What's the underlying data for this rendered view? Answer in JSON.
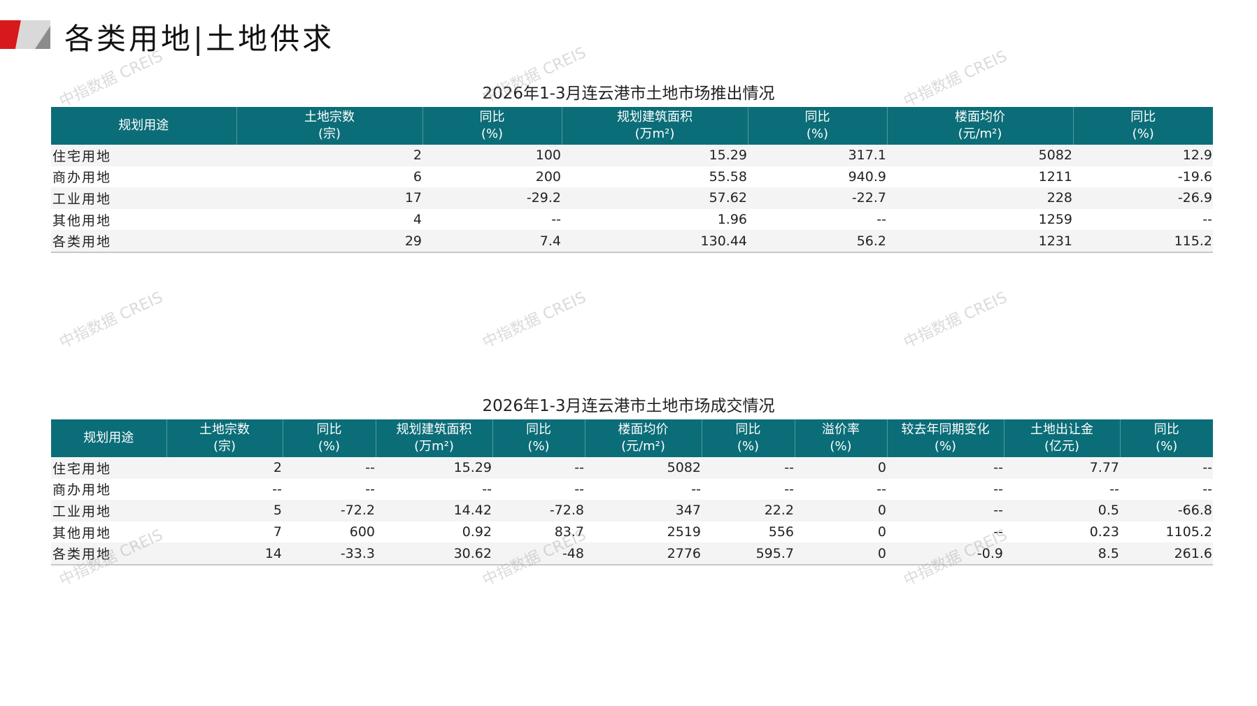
{
  "page": {
    "title": "各类用地|土地供求",
    "watermark": "中指数据 CREIS",
    "header_color": "#0b6d77",
    "logo_red": "#d7191c"
  },
  "supply": {
    "title": "2026年1-3月连云港市土地市场推出情况",
    "headers": [
      "规划用途",
      "土地宗数\n(宗)",
      "同比\n(%)",
      "规划建筑面积\n(万m²)",
      "同比\n(%)",
      "楼面均价\n(元/m²)",
      "同比\n(%)"
    ],
    "rows": [
      [
        "住宅用地",
        "2",
        "100",
        "15.29",
        "317.1",
        "5082",
        "12.9"
      ],
      [
        "商办用地",
        "6",
        "200",
        "55.58",
        "940.9",
        "1211",
        "-19.6"
      ],
      [
        "工业用地",
        "17",
        "-29.2",
        "57.62",
        "-22.7",
        "228",
        "-26.9"
      ],
      [
        "其他用地",
        "4",
        "--",
        "1.96",
        "--",
        "1259",
        "--"
      ],
      [
        "各类用地",
        "29",
        "7.4",
        "130.44",
        "56.2",
        "1231",
        "115.2"
      ]
    ]
  },
  "deal": {
    "title": "2026年1-3月连云港市土地市场成交情况",
    "headers": [
      "规划用途",
      "土地宗数\n(宗)",
      "同比\n(%)",
      "规划建筑面积\n(万m²)",
      "同比\n(%)",
      "楼面均价\n(元/m²)",
      "同比\n(%)",
      "溢价率\n(%)",
      "较去年同期变化\n(%)",
      "土地出让金\n(亿元)",
      "同比\n(%)"
    ],
    "rows": [
      [
        "住宅用地",
        "2",
        "--",
        "15.29",
        "--",
        "5082",
        "--",
        "0",
        "--",
        "7.77",
        "--"
      ],
      [
        "商办用地",
        "--",
        "--",
        "--",
        "--",
        "--",
        "--",
        "--",
        "--",
        "--",
        "--"
      ],
      [
        "工业用地",
        "5",
        "-72.2",
        "14.42",
        "-72.8",
        "347",
        "22.2",
        "0",
        "--",
        "0.5",
        "-66.8"
      ],
      [
        "其他用地",
        "7",
        "600",
        "0.92",
        "83.7",
        "2519",
        "556",
        "0",
        "--",
        "0.23",
        "1105.2"
      ],
      [
        "各类用地",
        "14",
        "-33.3",
        "30.62",
        "-48",
        "2776",
        "595.7",
        "0",
        "-0.9",
        "8.5",
        "261.6"
      ]
    ]
  }
}
